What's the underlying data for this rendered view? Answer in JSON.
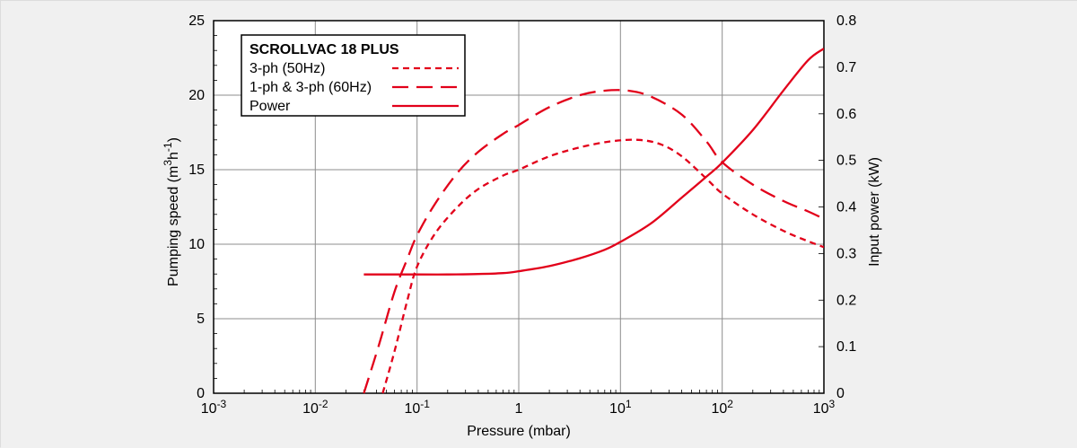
{
  "colors": {
    "accent": "#e2001a",
    "grid": "#8c8c8c",
    "frame": "#000000",
    "background": "#f0f0f0",
    "plot_background": "#ffffff",
    "text": "#000000"
  },
  "chart_data": {
    "type": "line",
    "title": "",
    "x_axis": {
      "label": "Pressure (mbar)",
      "scale": "log",
      "min": 0.001,
      "max": 1000,
      "ticks": [
        {
          "value": 0.001,
          "base": "10",
          "exp": "-3"
        },
        {
          "value": 0.01,
          "base": "10",
          "exp": "-2"
        },
        {
          "value": 0.1,
          "base": "10",
          "exp": "-1"
        },
        {
          "value": 1,
          "base": "1",
          "exp": ""
        },
        {
          "value": 10,
          "base": "10",
          "exp": "1"
        },
        {
          "value": 100,
          "base": "10",
          "exp": "2"
        },
        {
          "value": 1000,
          "base": "10",
          "exp": "3"
        }
      ]
    },
    "y_axis_left": {
      "label_parts": [
        {
          "t": "Pumping speed (m",
          "sup": false
        },
        {
          "t": "3",
          "sup": true
        },
        {
          "t": "h",
          "sup": false
        },
        {
          "t": "-1",
          "sup": true
        },
        {
          "t": ")",
          "sup": false
        }
      ],
      "min": 0,
      "max": 25,
      "ticks": [
        0,
        5,
        10,
        15,
        20,
        25
      ],
      "gridlines": [
        5,
        10,
        15,
        20
      ]
    },
    "y_axis_right": {
      "label": "Input power (kW)",
      "min": 0,
      "max": 0.8,
      "ticks": [
        0,
        0.1,
        0.2,
        0.3,
        0.4,
        0.5,
        0.6,
        0.7,
        0.8
      ]
    },
    "legend": {
      "title": "SCROLLVAC 18 PLUS",
      "entries": [
        {
          "label": "3-ph (50Hz)",
          "style": "dash-short"
        },
        {
          "label": "1-ph & 3-ph (60Hz)",
          "style": "dash-long"
        },
        {
          "label": "Power",
          "style": "solid"
        }
      ]
    },
    "series": [
      {
        "name": "3-ph (50Hz)",
        "axis": "left",
        "style": "dash-short",
        "color": "#e2001a",
        "points": [
          [
            0.046,
            0
          ],
          [
            0.06,
            2.8
          ],
          [
            0.08,
            6.2
          ],
          [
            0.1,
            8.5
          ],
          [
            0.15,
            10.7
          ],
          [
            0.25,
            12.5
          ],
          [
            0.4,
            13.7
          ],
          [
            0.7,
            14.6
          ],
          [
            1,
            15.0
          ],
          [
            2,
            15.9
          ],
          [
            4,
            16.5
          ],
          [
            8,
            16.9
          ],
          [
            15,
            17.0
          ],
          [
            25,
            16.7
          ],
          [
            40,
            15.9
          ],
          [
            70,
            14.4
          ],
          [
            100,
            13.4
          ],
          [
            200,
            12.0
          ],
          [
            400,
            10.9
          ],
          [
            700,
            10.2
          ],
          [
            1000,
            9.8
          ]
        ]
      },
      {
        "name": "1-ph & 3-ph (60Hz)",
        "axis": "left",
        "style": "dash-long",
        "color": "#e2001a",
        "points": [
          [
            0.03,
            0
          ],
          [
            0.042,
            3.2
          ],
          [
            0.06,
            6.8
          ],
          [
            0.08,
            9.0
          ],
          [
            0.1,
            10.6
          ],
          [
            0.15,
            12.7
          ],
          [
            0.25,
            14.8
          ],
          [
            0.4,
            16.2
          ],
          [
            0.7,
            17.4
          ],
          [
            1,
            18.0
          ],
          [
            2,
            19.2
          ],
          [
            4,
            20.0
          ],
          [
            7,
            20.3
          ],
          [
            12,
            20.3
          ],
          [
            20,
            19.9
          ],
          [
            40,
            18.7
          ],
          [
            70,
            16.9
          ],
          [
            100,
            15.5
          ],
          [
            200,
            14.0
          ],
          [
            400,
            12.9
          ],
          [
            700,
            12.2
          ],
          [
            1000,
            11.7
          ]
        ]
      },
      {
        "name": "Power",
        "axis": "right",
        "style": "solid",
        "color": "#e2001a",
        "points": [
          [
            0.03,
            0.255
          ],
          [
            0.06,
            0.255
          ],
          [
            0.1,
            0.255
          ],
          [
            0.2,
            0.255
          ],
          [
            0.4,
            0.256
          ],
          [
            0.7,
            0.258
          ],
          [
            1,
            0.262
          ],
          [
            2,
            0.273
          ],
          [
            4,
            0.29
          ],
          [
            7,
            0.308
          ],
          [
            10,
            0.325
          ],
          [
            20,
            0.365
          ],
          [
            40,
            0.42
          ],
          [
            70,
            0.465
          ],
          [
            100,
            0.495
          ],
          [
            200,
            0.565
          ],
          [
            400,
            0.65
          ],
          [
            700,
            0.715
          ],
          [
            1000,
            0.74
          ]
        ]
      }
    ]
  }
}
